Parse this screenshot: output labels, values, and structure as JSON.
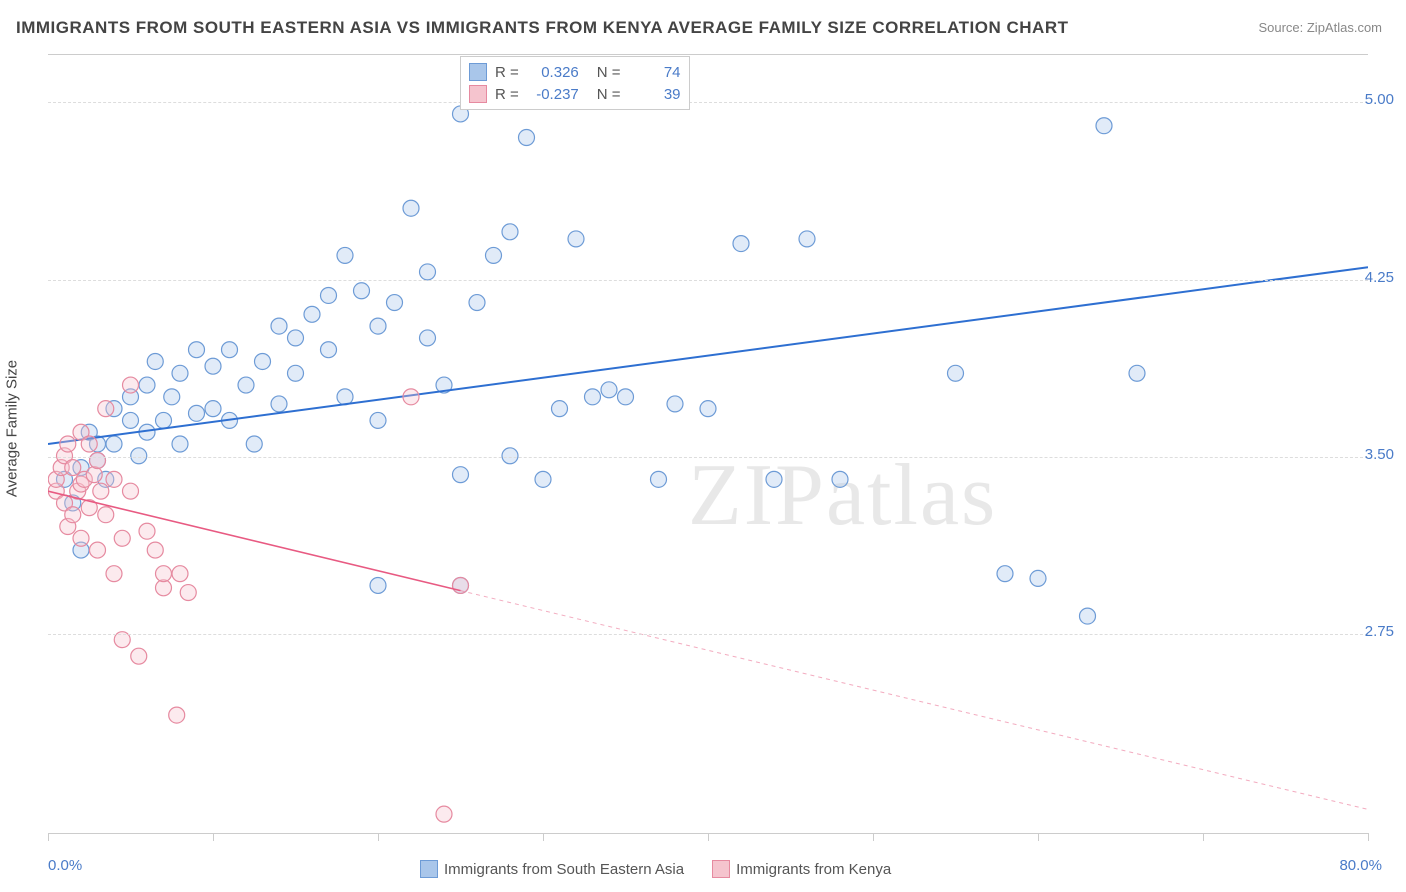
{
  "title": "IMMIGRANTS FROM SOUTH EASTERN ASIA VS IMMIGRANTS FROM KENYA AVERAGE FAMILY SIZE CORRELATION CHART",
  "source_label": "Source: ZipAtlas.com",
  "watermark": "ZIPatlas",
  "y_axis_label": "Average Family Size",
  "x_start_label": "0.0%",
  "x_end_label": "80.0%",
  "chart": {
    "type": "scatter",
    "background_color": "#ffffff",
    "grid_color": "#dddddd",
    "axis_color": "#cccccc",
    "tick_color": "#cccccc",
    "title_fontsize": 17,
    "label_fontsize": 15,
    "tick_label_color": "#4a7bc8",
    "xlim": [
      0,
      80
    ],
    "ylim": [
      1.9,
      5.2
    ],
    "y_ticks": [
      2.75,
      3.5,
      4.25,
      5.0
    ],
    "y_tick_labels": [
      "2.75",
      "3.50",
      "4.25",
      "5.00"
    ],
    "x_tick_positions": [
      0,
      10,
      20,
      30,
      40,
      50,
      60,
      70,
      80
    ],
    "marker_radius": 8,
    "series": [
      {
        "name": "Immigrants from South Eastern Asia",
        "color_fill": "#a9c6ea",
        "color_stroke": "#6d9bd6",
        "R": "0.326",
        "N": "74",
        "trend": {
          "x1": 0,
          "y1": 3.55,
          "x2": 80,
          "y2": 4.3,
          "extrapolate_from_x": null,
          "color": "#2e6fd1",
          "width": 2
        },
        "points": [
          [
            1,
            3.4
          ],
          [
            1.5,
            3.3
          ],
          [
            2,
            3.45
          ],
          [
            2,
            3.1
          ],
          [
            2.5,
            3.6
          ],
          [
            3,
            3.55
          ],
          [
            3,
            3.48
          ],
          [
            3.5,
            3.4
          ],
          [
            4,
            3.7
          ],
          [
            4,
            3.55
          ],
          [
            5,
            3.65
          ],
          [
            5,
            3.75
          ],
          [
            5.5,
            3.5
          ],
          [
            6,
            3.8
          ],
          [
            6,
            3.6
          ],
          [
            6.5,
            3.9
          ],
          [
            7,
            3.65
          ],
          [
            7.5,
            3.75
          ],
          [
            8,
            3.55
          ],
          [
            8,
            3.85
          ],
          [
            9,
            3.68
          ],
          [
            9,
            3.95
          ],
          [
            10,
            3.7
          ],
          [
            10,
            3.88
          ],
          [
            11,
            3.65
          ],
          [
            11,
            3.95
          ],
          [
            12,
            3.8
          ],
          [
            12.5,
            3.55
          ],
          [
            13,
            3.9
          ],
          [
            14,
            3.72
          ],
          [
            14,
            4.05
          ],
          [
            15,
            3.85
          ],
          [
            15,
            4.0
          ],
          [
            16,
            4.1
          ],
          [
            17,
            3.95
          ],
          [
            17,
            4.18
          ],
          [
            18,
            3.75
          ],
          [
            18,
            4.35
          ],
          [
            19,
            4.2
          ],
          [
            20,
            4.05
          ],
          [
            20,
            3.65
          ],
          [
            21,
            4.15
          ],
          [
            22,
            4.55
          ],
          [
            23,
            4.0
          ],
          [
            23,
            4.28
          ],
          [
            24,
            3.8
          ],
          [
            25,
            4.95
          ],
          [
            25,
            3.42
          ],
          [
            26,
            4.15
          ],
          [
            27,
            4.35
          ],
          [
            28,
            3.5
          ],
          [
            28,
            4.45
          ],
          [
            29,
            4.85
          ],
          [
            30,
            3.4
          ],
          [
            31,
            3.7
          ],
          [
            32,
            4.42
          ],
          [
            33,
            3.75
          ],
          [
            34,
            3.78
          ],
          [
            35,
            3.75
          ],
          [
            37,
            3.4
          ],
          [
            38,
            3.72
          ],
          [
            40,
            3.7
          ],
          [
            42,
            4.4
          ],
          [
            44,
            3.4
          ],
          [
            46,
            4.42
          ],
          [
            48,
            3.4
          ],
          [
            55,
            3.85
          ],
          [
            58,
            3.0
          ],
          [
            60,
            2.98
          ],
          [
            63,
            2.82
          ],
          [
            64,
            4.9
          ],
          [
            66,
            3.85
          ],
          [
            20,
            2.95
          ],
          [
            25,
            2.95
          ]
        ]
      },
      {
        "name": "Immigrants from Kenya",
        "color_fill": "#f5c4ce",
        "color_stroke": "#e68aa0",
        "R": "-0.237",
        "N": "39",
        "trend": {
          "x1": 0,
          "y1": 3.35,
          "x2": 80,
          "y2": 2.0,
          "extrapolate_from_x": 25,
          "color": "#e85a82",
          "width": 1.6
        },
        "points": [
          [
            0.5,
            3.35
          ],
          [
            0.5,
            3.4
          ],
          [
            0.8,
            3.45
          ],
          [
            1,
            3.3
          ],
          [
            1,
            3.5
          ],
          [
            1.2,
            3.2
          ],
          [
            1.2,
            3.55
          ],
          [
            1.5,
            3.25
          ],
          [
            1.5,
            3.45
          ],
          [
            1.8,
            3.35
          ],
          [
            2,
            3.15
          ],
          [
            2,
            3.6
          ],
          [
            2,
            3.38
          ],
          [
            2.2,
            3.4
          ],
          [
            2.5,
            3.28
          ],
          [
            2.5,
            3.55
          ],
          [
            2.8,
            3.42
          ],
          [
            3,
            3.1
          ],
          [
            3,
            3.48
          ],
          [
            3.2,
            3.35
          ],
          [
            3.5,
            3.25
          ],
          [
            3.5,
            3.7
          ],
          [
            4,
            3.4
          ],
          [
            4,
            3.0
          ],
          [
            4.5,
            3.15
          ],
          [
            5,
            3.8
          ],
          [
            5,
            3.35
          ],
          [
            5.5,
            2.65
          ],
          [
            6,
            3.18
          ],
          [
            6.5,
            3.1
          ],
          [
            7,
            2.94
          ],
          [
            7,
            3.0
          ],
          [
            7.8,
            2.4
          ],
          [
            8,
            3.0
          ],
          [
            8.5,
            2.92
          ],
          [
            4.5,
            2.72
          ],
          [
            24,
            1.98
          ],
          [
            22,
            3.75
          ],
          [
            25,
            2.95
          ]
        ]
      }
    ]
  },
  "legend_top": {
    "rows": [
      {
        "swatch_fill": "#a9c6ea",
        "swatch_stroke": "#6d9bd6",
        "R": "0.326",
        "N": "74"
      },
      {
        "swatch_fill": "#f5c4ce",
        "swatch_stroke": "#e68aa0",
        "R": "-0.237",
        "N": "39"
      }
    ]
  },
  "legend_bottom": {
    "items": [
      {
        "swatch_fill": "#a9c6ea",
        "swatch_stroke": "#6d9bd6",
        "label": "Immigrants from South Eastern Asia"
      },
      {
        "swatch_fill": "#f5c4ce",
        "swatch_stroke": "#e68aa0",
        "label": "Immigrants from Kenya"
      }
    ]
  }
}
